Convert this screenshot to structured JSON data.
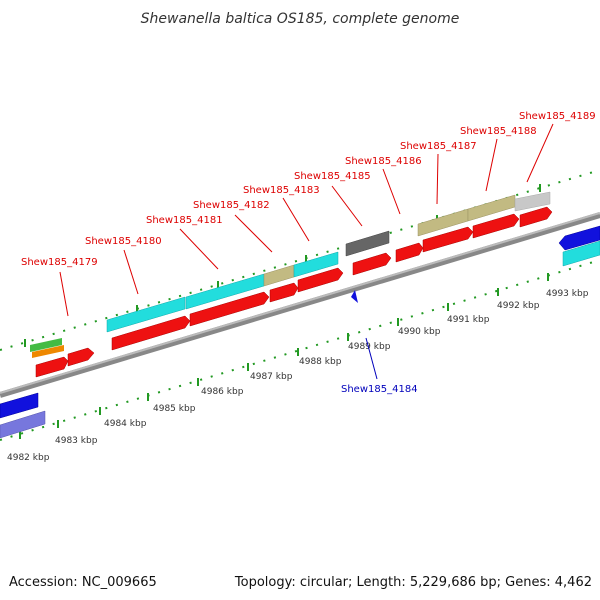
{
  "title": "Shewanella baltica OS185, complete genome",
  "footer": {
    "accession": "Accession: NC_009665",
    "summary": "Topology: circular; Length: 5,229,686 bp; Genes: 4,462"
  },
  "colors": {
    "forward_label": "#dd0000",
    "reverse_label": "#0000bb",
    "backbone": "#888888",
    "ticks": "#229922",
    "cds": "#ee1111",
    "hypothetical": "#22dddd",
    "khaki": "#c2ba82",
    "grey": "#666666",
    "light_grey": "#c8c8c8",
    "blue": "#1111dd",
    "slate": "#7777dd",
    "green": "#44bb44",
    "orange": "#ee8800"
  },
  "kbp_labels": [
    "4982 kbp",
    "4983 kbp",
    "4984 kbp",
    "4985 kbp",
    "4986 kbp",
    "4987 kbp",
    "4988 kbp",
    "4989 kbp",
    "4990 kbp",
    "4991 kbp",
    "4992 kbp",
    "4993 kbp"
  ],
  "gene_labels": [
    {
      "text": "Shew185_4179",
      "strand": "forward"
    },
    {
      "text": "Shew185_4180",
      "strand": "forward"
    },
    {
      "text": "Shew185_4181",
      "strand": "forward"
    },
    {
      "text": "Shew185_4182",
      "strand": "forward"
    },
    {
      "text": "Shew185_4183",
      "strand": "forward"
    },
    {
      "text": "Shew185_4185",
      "strand": "forward"
    },
    {
      "text": "Shew185_4186",
      "strand": "forward"
    },
    {
      "text": "Shew185_4187",
      "strand": "forward"
    },
    {
      "text": "Shew185_4188",
      "strand": "forward"
    },
    {
      "text": "Shew185_4189",
      "strand": "forward"
    },
    {
      "text": "Shew185_4184",
      "strand": "reverse"
    }
  ]
}
